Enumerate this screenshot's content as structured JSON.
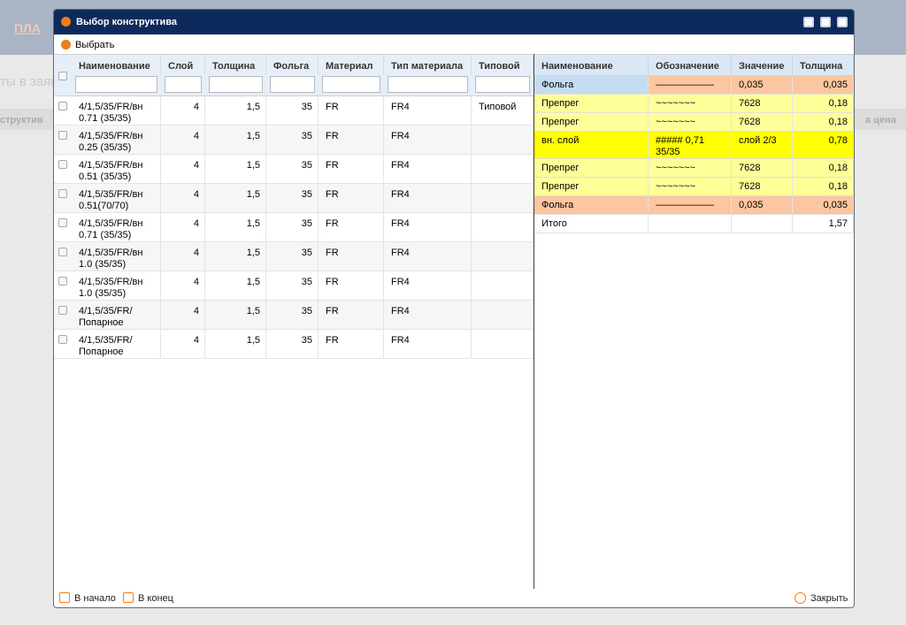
{
  "background": {
    "logo": "ПЛА",
    "heading": "ты в заяв",
    "column_1": "структив",
    "column_2": "а цена"
  },
  "dialog": {
    "title": "Выбор конструктива",
    "toolbar": {
      "select": "Выбрать"
    },
    "left_table": {
      "headers": [
        "Наименование",
        "Слой",
        "Толщина",
        "Фольга",
        "Материал",
        "Тип материала",
        "Типовой"
      ],
      "rows": [
        [
          "4/1,5/35/FR/вн 0.71 (35/35)",
          "4",
          "1,5",
          "35",
          "FR",
          "FR4",
          "Типовой"
        ],
        [
          "4/1,5/35/FR/вн 0.25 (35/35)",
          "4",
          "1,5",
          "35",
          "FR",
          "FR4",
          null
        ],
        [
          "4/1,5/35/FR/вн 0.51 (35/35)",
          "4",
          "1,5",
          "35",
          "FR",
          "FR4",
          null
        ],
        [
          "4/1,5/35/FR/вн 0.51(70/70)",
          "4",
          "1,5",
          "35",
          "FR",
          "FR4",
          null
        ],
        [
          "4/1,5/35/FR/вн 0.71 (35/35)",
          "4",
          "1,5",
          "35",
          "FR",
          "FR4",
          null
        ],
        [
          "4/1,5/35/FR/вн 1.0 (35/35)",
          "4",
          "1,5",
          "35",
          "FR",
          "FR4",
          null
        ],
        [
          "4/1,5/35/FR/вн 1.0 (35/35)",
          "4",
          "1,5",
          "35",
          "FR",
          "FR4",
          null
        ],
        [
          "4/1,5/35/FR/ Попарное",
          "4",
          "1,5",
          "35",
          "FR",
          "FR4",
          null
        ],
        [
          "4/1,5/35/FR/ Попарное",
          "4",
          "1,5",
          "35",
          "FR",
          "FR4",
          null
        ]
      ]
    },
    "right_table": {
      "headers": [
        "Наименование",
        "Обозначение",
        "Значение",
        "Толщина"
      ],
      "rows": [
        {
          "cells": [
            "Фольга",
            "——————",
            "0,035",
            "0,035"
          ],
          "color": "#fbc6a0"
        },
        {
          "cells": [
            "Препрег",
            "~~~~~~~",
            "7628",
            "0,18"
          ],
          "color": "#ffff99"
        },
        {
          "cells": [
            "Препрег",
            "~~~~~~~",
            "7628",
            "0,18"
          ],
          "color": "#ffff99"
        },
        {
          "cells": [
            "вн. слой",
            "##### 0,71 35/35",
            "слой 2/3",
            "0,78"
          ],
          "color": "#ffff00"
        },
        {
          "cells": [
            "Препрег",
            "~~~~~~~",
            "7628",
            "0,18"
          ],
          "color": "#ffff99"
        },
        {
          "cells": [
            "Препрег",
            "~~~~~~~",
            "7628",
            "0,18"
          ],
          "color": "#ffff99"
        },
        {
          "cells": [
            "Фольга",
            "——————",
            "0,035",
            "0,035"
          ],
          "color": "#fbc6a0"
        },
        {
          "cells": [
            "Итого",
            null,
            null,
            "1,57"
          ],
          "color": "#ffffff"
        }
      ]
    },
    "footer": {
      "first": "В начало",
      "last": "В конец",
      "close": "Закрыть"
    }
  }
}
